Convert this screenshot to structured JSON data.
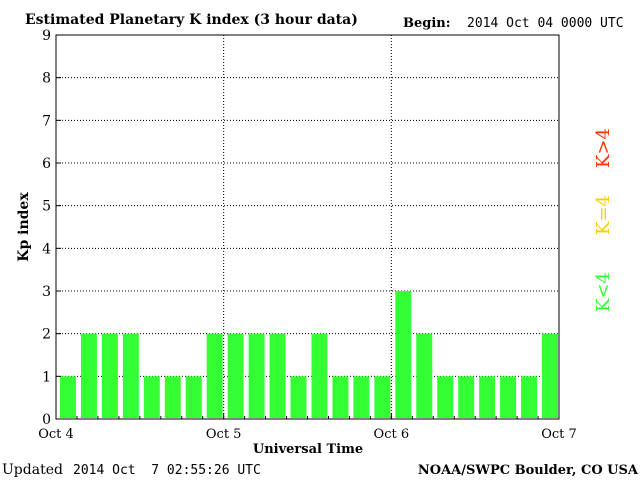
{
  "chart_data": {
    "type": "bar",
    "title": "Estimated Planetary K index (3 hour data)",
    "begin_label": "Begin:",
    "begin_value": "2014 Oct 04 0000 UTC",
    "xlabel": "Universal Time",
    "ylabel": "Kp index",
    "ylim": [
      0,
      9
    ],
    "yticks": [
      "0",
      "1",
      "2",
      "3",
      "4",
      "5",
      "6",
      "7",
      "8",
      "9"
    ],
    "xtick_labels": [
      "Oct 4",
      "Oct 5",
      "Oct 6",
      "Oct 7"
    ],
    "bar_interval_hours": 3,
    "values": [
      1,
      2,
      2,
      2,
      1,
      1,
      1,
      2,
      2,
      2,
      2,
      1,
      2,
      1,
      1,
      1,
      3,
      2,
      1,
      1,
      1,
      1,
      1,
      2
    ],
    "grid": true,
    "legend": [
      {
        "label": "K<4",
        "color": "#33ff33"
      },
      {
        "label": "K=4",
        "color": "#ffcc00"
      },
      {
        "label": "K>4",
        "color": "#ff3300"
      }
    ]
  },
  "footer": {
    "updated_label": "Updated",
    "updated_value": "2014 Oct  7 02:55:26 UTC",
    "source": "NOAA/SWPC Boulder, CO USA"
  },
  "colors": {
    "bar": "#33ff33",
    "axis": "#000000",
    "grid": "#000000"
  }
}
